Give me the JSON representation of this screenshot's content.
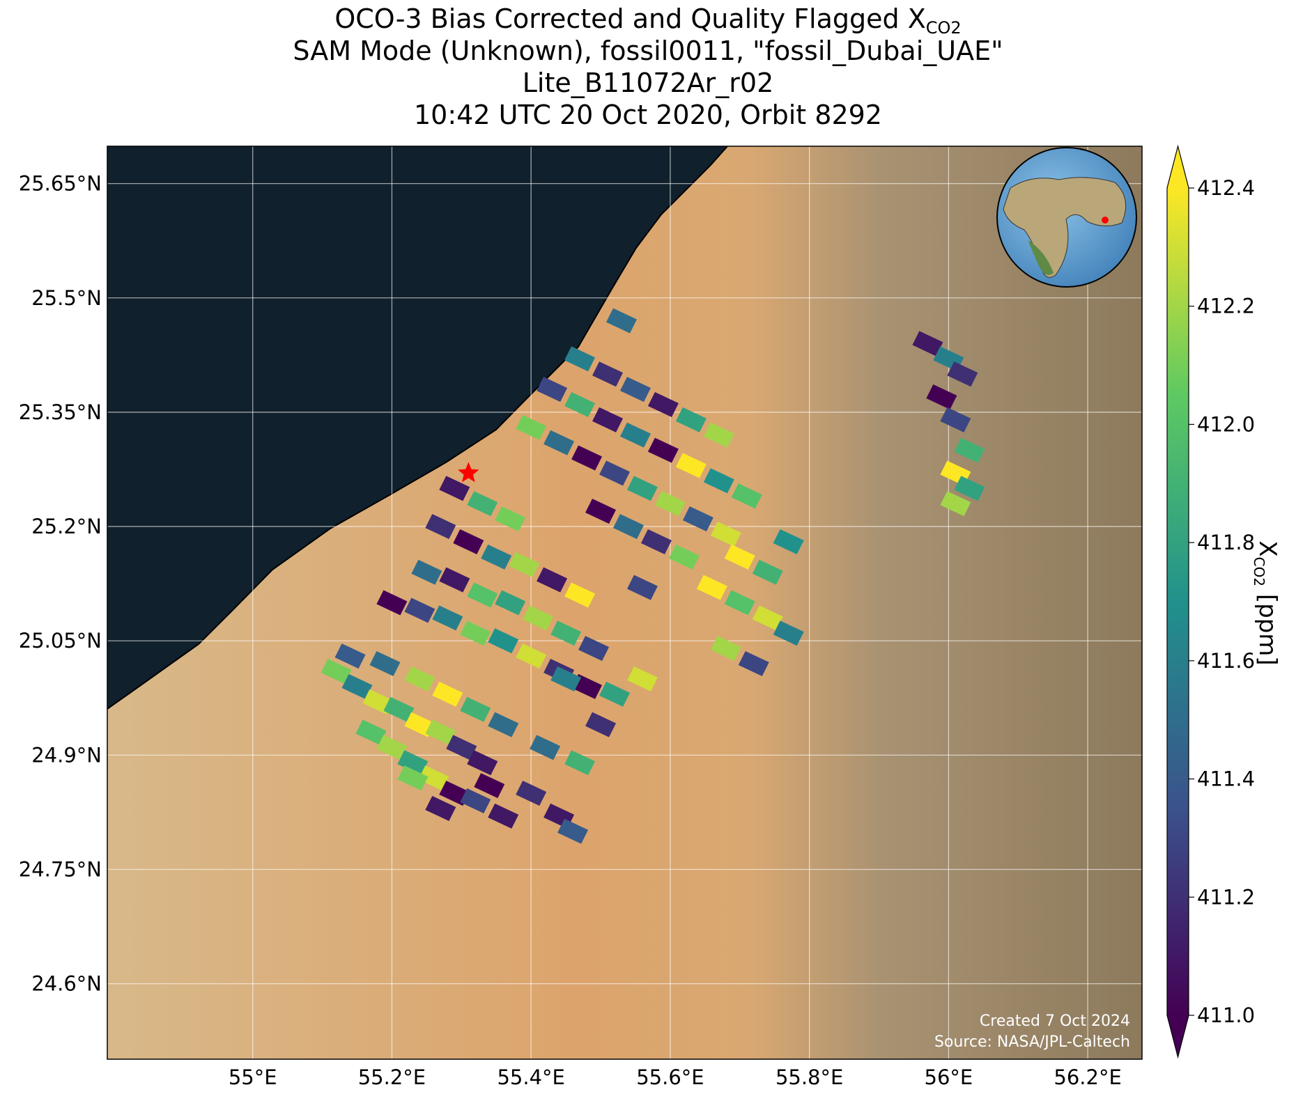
{
  "chart_data": {
    "type": "map",
    "title": [
      "OCO-3 Bias Corrected and Quality Flagged X",
      "CO2"
    ],
    "subtitle": [
      "SAM Mode (Unknown), fossil0011, \"fossil_Dubai_UAE\"",
      "Lite_B11072Ar_r02",
      "10:42 UTC 20 Oct 2020, Orbit 8292"
    ],
    "xlim": [
      54.791,
      56.278
    ],
    "ylim": [
      24.501,
      25.699
    ],
    "xticks": [
      {
        "value": 55,
        "label": "55°E"
      },
      {
        "value": 55.2,
        "label": "55.2°E"
      },
      {
        "value": 55.4,
        "label": "55.4°E"
      },
      {
        "value": 55.6,
        "label": "55.6°E"
      },
      {
        "value": 55.8,
        "label": "55.8°E"
      },
      {
        "value": 56,
        "label": "56°E"
      },
      {
        "value": 56.2,
        "label": "56.2°E"
      }
    ],
    "yticks": [
      {
        "value": 24.6,
        "label": "24.6°N"
      },
      {
        "value": 24.75,
        "label": "24.75°N"
      },
      {
        "value": 24.9,
        "label": "24.9°N"
      },
      {
        "value": 25.05,
        "label": "25.05°N"
      },
      {
        "value": 25.2,
        "label": "25.2°N"
      },
      {
        "value": 25.35,
        "label": "25.35°N"
      },
      {
        "value": 25.5,
        "label": "25.5°N"
      },
      {
        "value": 25.65,
        "label": "25.65°N"
      }
    ],
    "grid": true,
    "colorbar": {
      "label": [
        "X",
        "CO2",
        " [ppm]"
      ],
      "clim": [
        411.0,
        412.4
      ],
      "ticks": [
        {
          "value": 411.0,
          "label": "411.0"
        },
        411.2,
        411.4,
        411.6,
        411.8,
        {
          "value": 412.0,
          "label": "412.0"
        },
        412.2,
        412.4
      ],
      "colormap": [
        "#440154",
        "#3b528b",
        "#21918c",
        "#5ec962",
        "#fde725"
      ]
    },
    "target": [
      55.31,
      25.27
    ],
    "target_color": "#ff0000",
    "soundings": [
      [
        55.12,
        25.01,
        412.1
      ],
      [
        55.15,
        24.99,
        411.6
      ],
      [
        55.18,
        24.97,
        412.3
      ],
      [
        55.21,
        24.96,
        411.9
      ],
      [
        55.24,
        24.94,
        412.4
      ],
      [
        55.27,
        24.93,
        412.2
      ],
      [
        55.3,
        24.91,
        411.2
      ],
      [
        55.33,
        24.89,
        411.1
      ],
      [
        55.17,
        24.93,
        412.0
      ],
      [
        55.2,
        24.91,
        412.2
      ],
      [
        55.23,
        24.89,
        411.8
      ],
      [
        55.26,
        24.87,
        412.3
      ],
      [
        55.29,
        24.85,
        411.0
      ],
      [
        55.32,
        24.84,
        411.3
      ],
      [
        55.36,
        24.82,
        411.1
      ],
      [
        55.14,
        25.03,
        411.4
      ],
      [
        55.19,
        25.02,
        411.5
      ],
      [
        55.24,
        25.0,
        412.2
      ],
      [
        55.28,
        24.98,
        412.4
      ],
      [
        55.32,
        24.96,
        411.9
      ],
      [
        55.36,
        24.94,
        411.5
      ],
      [
        55.23,
        24.87,
        412.1
      ],
      [
        55.27,
        24.83,
        411.1
      ],
      [
        55.34,
        24.86,
        411.0
      ],
      [
        55.4,
        24.85,
        411.2
      ],
      [
        55.44,
        24.82,
        411.1
      ],
      [
        55.46,
        24.8,
        411.4
      ],
      [
        55.2,
        25.1,
        411.0
      ],
      [
        55.24,
        25.09,
        411.3
      ],
      [
        55.28,
        25.08,
        411.6
      ],
      [
        55.32,
        25.06,
        412.1
      ],
      [
        55.36,
        25.05,
        411.7
      ],
      [
        55.4,
        25.03,
        412.3
      ],
      [
        55.44,
        25.01,
        411.2
      ],
      [
        55.48,
        24.99,
        411.0
      ],
      [
        55.25,
        25.14,
        411.5
      ],
      [
        55.29,
        25.13,
        411.1
      ],
      [
        55.33,
        25.11,
        412.0
      ],
      [
        55.37,
        25.1,
        411.8
      ],
      [
        55.41,
        25.08,
        412.2
      ],
      [
        55.45,
        25.06,
        411.9
      ],
      [
        55.49,
        25.04,
        411.3
      ],
      [
        55.27,
        25.2,
        411.2
      ],
      [
        55.31,
        25.18,
        411.0
      ],
      [
        55.35,
        25.16,
        411.6
      ],
      [
        55.39,
        25.15,
        412.2
      ],
      [
        55.43,
        25.13,
        411.1
      ],
      [
        55.47,
        25.11,
        412.4
      ],
      [
        55.29,
        25.25,
        411.1
      ],
      [
        55.33,
        25.23,
        411.9
      ],
      [
        55.37,
        25.21,
        412.1
      ],
      [
        55.45,
        25.0,
        411.6
      ],
      [
        55.52,
        24.98,
        411.8
      ],
      [
        55.56,
        25.0,
        412.3
      ],
      [
        55.5,
        24.94,
        411.2
      ],
      [
        55.42,
        24.91,
        411.5
      ],
      [
        55.47,
        24.89,
        411.9
      ],
      [
        55.4,
        25.33,
        412.1
      ],
      [
        55.44,
        25.31,
        411.5
      ],
      [
        55.48,
        25.29,
        411.0
      ],
      [
        55.52,
        25.27,
        411.3
      ],
      [
        55.56,
        25.25,
        411.8
      ],
      [
        55.6,
        25.23,
        412.2
      ],
      [
        55.64,
        25.21,
        411.4
      ],
      [
        55.68,
        25.19,
        412.3
      ],
      [
        55.43,
        25.38,
        411.3
      ],
      [
        55.47,
        25.36,
        411.9
      ],
      [
        55.51,
        25.34,
        411.1
      ],
      [
        55.55,
        25.32,
        411.6
      ],
      [
        55.59,
        25.3,
        411.0
      ],
      [
        55.63,
        25.28,
        412.4
      ],
      [
        55.67,
        25.26,
        411.7
      ],
      [
        55.71,
        25.24,
        412.0
      ],
      [
        55.47,
        25.42,
        411.6
      ],
      [
        55.51,
        25.4,
        411.2
      ],
      [
        55.55,
        25.38,
        411.4
      ],
      [
        55.59,
        25.36,
        411.1
      ],
      [
        55.63,
        25.34,
        411.8
      ],
      [
        55.67,
        25.32,
        412.2
      ],
      [
        55.5,
        25.22,
        411.0
      ],
      [
        55.54,
        25.2,
        411.5
      ],
      [
        55.58,
        25.18,
        411.2
      ],
      [
        55.62,
        25.16,
        412.1
      ],
      [
        55.56,
        25.12,
        411.3
      ],
      [
        55.53,
        25.47,
        411.5
      ],
      [
        55.66,
        25.12,
        412.4
      ],
      [
        55.7,
        25.1,
        412.0
      ],
      [
        55.74,
        25.08,
        412.3
      ],
      [
        55.77,
        25.06,
        411.6
      ],
      [
        55.7,
        25.16,
        412.4
      ],
      [
        55.74,
        25.14,
        411.9
      ],
      [
        55.77,
        25.18,
        411.7
      ],
      [
        55.68,
        25.04,
        412.2
      ],
      [
        55.72,
        25.02,
        411.3
      ],
      [
        55.97,
        25.44,
        411.1
      ],
      [
        56.0,
        25.42,
        411.6
      ],
      [
        56.02,
        25.4,
        411.2
      ],
      [
        55.99,
        25.37,
        411.0
      ],
      [
        56.01,
        25.34,
        411.3
      ],
      [
        56.03,
        25.3,
        411.9
      ],
      [
        56.01,
        25.27,
        412.4
      ],
      [
        56.03,
        25.25,
        411.8
      ],
      [
        56.01,
        25.23,
        412.2
      ]
    ],
    "footer": [
      "Created 7 Oct 2024",
      "Source: NASA/JPL-Caltech"
    ]
  }
}
